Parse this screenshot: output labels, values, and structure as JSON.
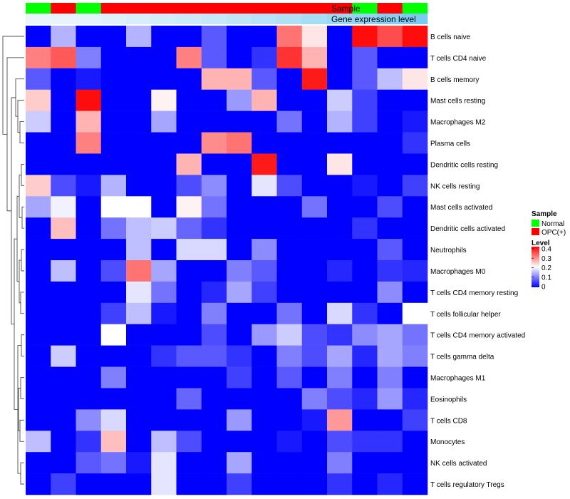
{
  "chart_data": {
    "type": "heatmap",
    "annotation_tracks": [
      {
        "label": "Sample",
        "values": [
          "Normal",
          "OPC(+)",
          "Normal",
          "OPC(+)",
          "OPC(+)",
          "OPC(+)",
          "OPC(+)",
          "OPC(+)",
          "OPC(+)",
          "OPC(+)",
          "OPC(+)",
          "OPC(+)",
          "OPC(+)",
          "Normal",
          "OPC(+)",
          "Normal"
        ]
      },
      {
        "label": "Gene expression level",
        "values": [
          0.05,
          0.07,
          0.1,
          0.13,
          0.17,
          0.21,
          0.25,
          0.29,
          0.34,
          0.39,
          0.44,
          0.5,
          0.57,
          0.64,
          0.72,
          0.8
        ]
      }
    ],
    "rows": [
      "B cells naive",
      "T cells CD4 naive",
      "B cells memory",
      "Mast cells resting",
      "Macrophages M2",
      "Plasma cells",
      "Dendritic cells resting",
      "NK cells resting",
      "Mast cells activated",
      "Dendritic cells activated",
      "Neutrophils",
      "Macrophages M0",
      "T cells CD4 memory resting",
      "T cells follicular helper",
      "T cells CD4 memory activated",
      "T cells gamma delta",
      "Macrophages M1",
      "Eosinophils",
      "T cells CD8",
      "Monocytes",
      "NK cells activated",
      "T cells regulatory  Tregs"
    ],
    "values": [
      [
        0,
        0.14,
        0,
        0,
        0.14,
        0,
        0,
        0.07,
        0,
        0,
        0.31,
        0.22,
        0,
        0.39,
        0.34,
        0.39
      ],
      [
        0.3,
        0.33,
        0.1,
        0,
        0,
        0,
        0.3,
        0.07,
        0,
        0.04,
        0.36,
        0.26,
        0,
        0.07,
        0,
        0
      ],
      [
        0.07,
        0,
        0.02,
        0,
        0,
        0,
        0,
        0.26,
        0.26,
        0.07,
        0,
        0.38,
        0,
        0.07,
        0.15,
        0.22
      ],
      [
        0.24,
        0,
        0.39,
        0,
        0,
        0.21,
        0,
        0,
        0.12,
        0.26,
        0,
        0,
        0.16,
        0.05,
        0,
        0
      ],
      [
        0.16,
        0,
        0.26,
        0,
        0,
        0.13,
        0,
        0,
        0,
        0,
        0.09,
        0,
        0.14,
        0.05,
        0,
        0.02
      ],
      [
        0,
        0,
        0.3,
        0,
        0,
        0,
        0,
        0.29,
        0.31,
        0,
        0,
        0,
        0,
        0,
        0,
        0.04
      ],
      [
        0,
        0,
        0,
        0,
        0,
        0,
        0.26,
        0,
        0,
        0.38,
        0,
        0,
        0.22,
        0,
        0,
        0
      ],
      [
        0.24,
        0.06,
        0.02,
        0.14,
        0,
        0,
        0.06,
        0.11,
        0,
        0.18,
        0.06,
        0,
        0,
        0.02,
        0,
        0.05
      ],
      [
        0.13,
        0.19,
        0,
        0.2,
        0.2,
        0,
        0.21,
        0.09,
        0,
        0,
        0,
        0.09,
        0,
        0,
        0.06,
        0
      ],
      [
        0,
        0.25,
        0,
        0.09,
        0.15,
        0.16,
        0.08,
        0.04,
        0,
        0,
        0,
        0,
        0,
        0.04,
        0,
        0
      ],
      [
        0,
        0,
        0,
        0,
        0.15,
        0,
        0.17,
        0.17,
        0,
        0.11,
        0,
        0,
        0,
        0,
        0.07,
        0
      ],
      [
        0,
        0.15,
        0,
        0.06,
        0.31,
        0.13,
        0,
        0,
        0.1,
        0.07,
        0,
        0,
        0.03,
        0,
        0.04,
        0.03
      ],
      [
        0,
        0,
        0,
        0,
        0.18,
        0.09,
        0,
        0.03,
        0.13,
        0.05,
        0,
        0,
        0,
        0,
        0.11,
        0
      ],
      [
        0,
        0,
        0,
        0.05,
        0.15,
        0.02,
        0,
        0.1,
        0,
        0,
        0.09,
        0,
        0.17,
        0.04,
        0,
        0.2
      ],
      [
        0,
        0,
        0,
        0.2,
        0,
        0,
        0,
        0.06,
        0,
        0.12,
        0.16,
        0.06,
        0.04,
        0.11,
        0.13,
        0.09
      ],
      [
        0,
        0.16,
        0,
        0,
        0,
        0.04,
        0.07,
        0.07,
        0.04,
        0,
        0.1,
        0.06,
        0.13,
        0.03,
        0.13,
        0.1
      ],
      [
        0,
        0,
        0,
        0.1,
        0,
        0,
        0,
        0,
        0.05,
        0,
        0.07,
        0,
        0.1,
        0,
        0.1,
        0
      ],
      [
        0,
        0,
        0,
        0,
        0,
        0,
        0.08,
        0,
        0,
        0,
        0,
        0.1,
        0.06,
        0.03,
        0.12,
        0.03
      ],
      [
        0,
        0,
        0.11,
        0.17,
        0,
        0,
        0,
        0,
        0.12,
        0,
        0,
        0.02,
        0.28,
        0,
        0,
        0.05
      ],
      [
        0.15,
        0,
        0.04,
        0.25,
        0,
        0.15,
        0.06,
        0,
        0,
        0,
        0.02,
        0,
        0.06,
        0.04,
        0.04,
        0
      ],
      [
        0,
        0,
        0.07,
        0.09,
        0.02,
        0.18,
        0,
        0,
        0.13,
        0,
        0,
        0,
        0.1,
        0,
        0,
        0
      ],
      [
        0,
        0.05,
        0,
        0,
        0,
        0.18,
        0,
        0,
        0.05,
        0,
        0,
        0,
        0.04,
        0,
        0.03,
        0
      ]
    ],
    "legend": {
      "sample_title": "Sample",
      "sample_items": [
        {
          "label": "Normal",
          "color": "#00FF00"
        },
        {
          "label": "OPC(+)",
          "color": "#FF0000"
        }
      ],
      "level_title": "Level",
      "level_ticks": [
        "0.4",
        "0.3",
        "0.2",
        "0.1",
        "0"
      ],
      "level_range": [
        0,
        0.4
      ]
    },
    "colors": {
      "low": "#0000FF",
      "mid": "#FFFFFF",
      "high": "#FF0000",
      "annot_low": "#F2F8FC",
      "annot_high": "#5BC0EE"
    }
  }
}
